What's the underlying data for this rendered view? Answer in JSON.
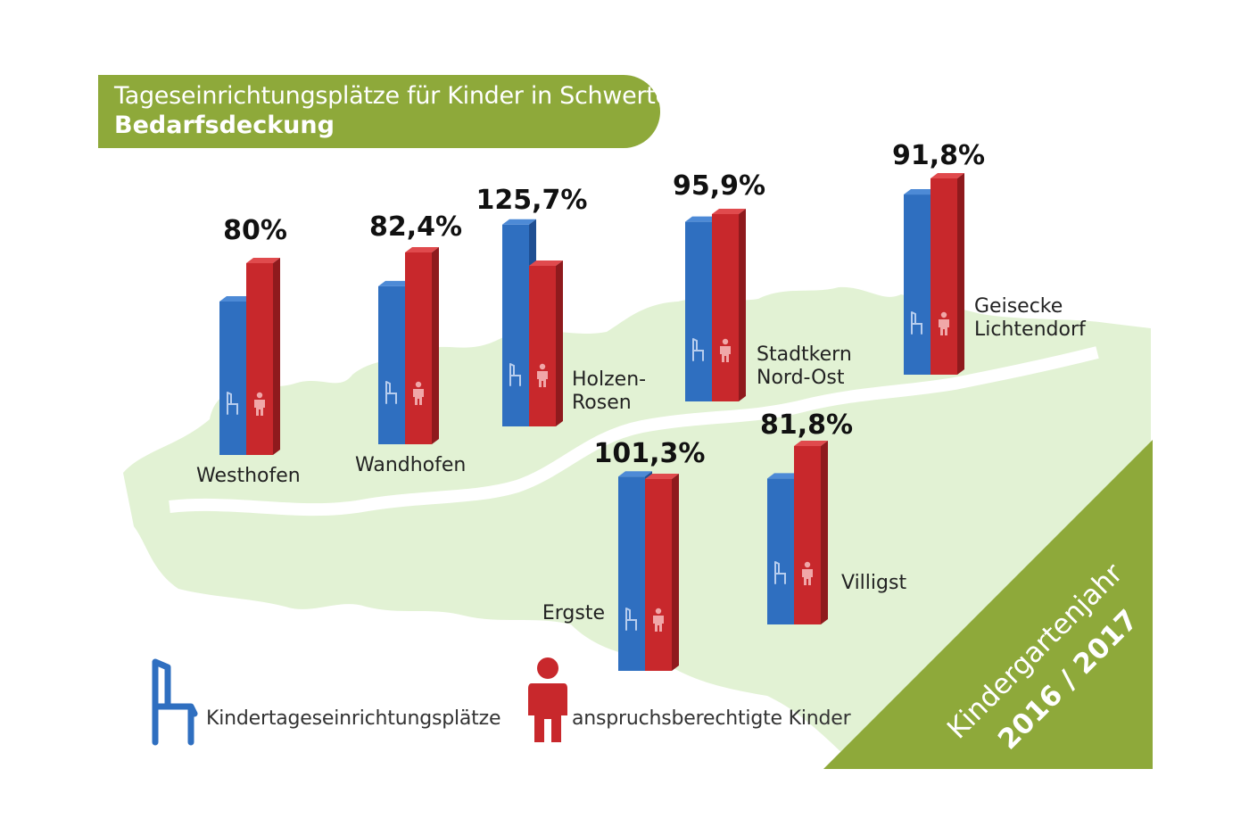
{
  "title": {
    "line1": "Tageseinrichtungsplätze für Kinder in Schwerte",
    "line2": "Bedarfsdeckung"
  },
  "corner": {
    "line1": "Kindergartenjahr",
    "line2": "2016 / 2017"
  },
  "legend": {
    "places": "Kindertageseinrichtungsplätze",
    "children": "anspruchsberechtigte Kinder"
  },
  "colors": {
    "places": "#2f6fc0",
    "children": "#c8282c",
    "green": "#8ea93a",
    "map": "#e2f2d4"
  },
  "icons": {
    "places": "chair-icon",
    "children": "person-icon"
  },
  "chart_data": {
    "type": "bar",
    "categories": [
      "Westhofen",
      "Wandhofen",
      "Holzen-Rosen",
      "Stadtkern Nord-Ost",
      "Geisecke Lichtendorf",
      "Ergste",
      "Villigst"
    ],
    "series": [
      {
        "name": "Kindertageseinrichtungsplätze",
        "values": [
          80,
          82.4,
          125.7,
          95.9,
          91.8,
          101.3,
          81.8
        ]
      },
      {
        "name": "anspruchsberechtigte Kinder",
        "values": [
          100,
          100,
          100,
          100,
          100,
          100,
          100
        ]
      }
    ],
    "labels": [
      "80%",
      "82,4%",
      "125,7%",
      "95,9%",
      "91,8%",
      "101,3%",
      "81,8%"
    ],
    "district_names": [
      [
        "Westhofen"
      ],
      [
        "Wandhofen"
      ],
      [
        "Holzen-",
        "Rosen"
      ],
      [
        "Stadtkern",
        "Nord-Ost"
      ],
      [
        "Geisecke",
        "Lichtendorf"
      ],
      [
        "Ergste"
      ],
      [
        "Villigst"
      ]
    ],
    "unit": "%"
  }
}
